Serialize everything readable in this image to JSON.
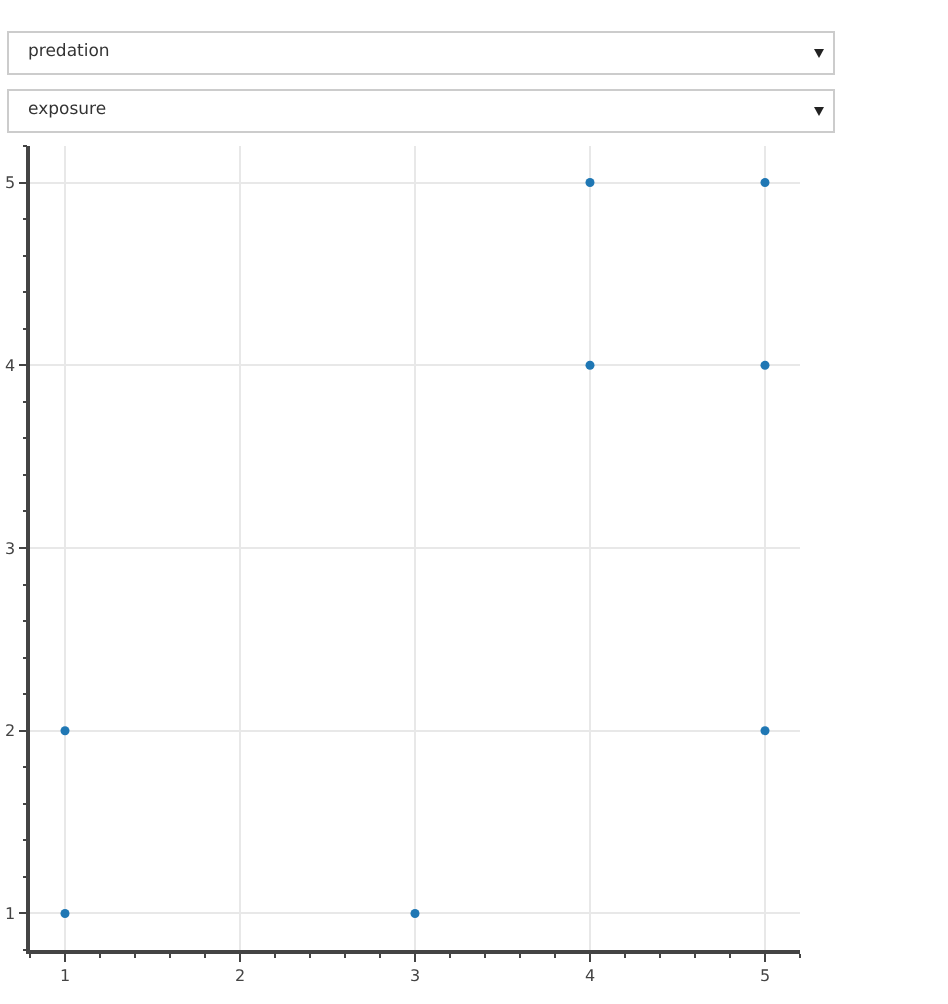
{
  "chart_data": {
    "type": "scatter",
    "annotations": [
      "predation",
      "exposure"
    ],
    "x": [
      1,
      1,
      3,
      4,
      4,
      5,
      5,
      5
    ],
    "values": [
      1,
      2,
      1,
      4,
      5,
      5,
      4,
      2
    ],
    "color": "#1f77b4",
    "marker": "circle",
    "xlim": [
      0.8,
      5.2
    ],
    "ylim": [
      0.8,
      5.2
    ],
    "xticks": [
      {
        "value": 0.8,
        "label": null
      },
      1,
      {
        "value": 1.2,
        "label": null
      },
      {
        "value": 1.4,
        "label": null
      },
      {
        "value": 1.6,
        "label": null
      },
      {
        "value": 1.8,
        "label": null
      },
      2,
      {
        "value": 2.2,
        "label": null
      },
      {
        "value": 2.4,
        "label": null
      },
      {
        "value": 2.6,
        "label": null
      },
      {
        "value": 2.8,
        "label": null
      },
      3,
      {
        "value": 3.2,
        "label": null
      },
      {
        "value": 3.4,
        "label": null
      },
      {
        "value": 3.6,
        "label": null
      },
      {
        "value": 3.8,
        "label": null
      },
      4,
      {
        "value": 4.2,
        "label": null
      },
      {
        "value": 4.4,
        "label": null
      },
      {
        "value": 4.6,
        "label": null
      },
      {
        "value": 4.8,
        "label": null
      },
      5,
      {
        "value": 5.2,
        "label": null
      }
    ],
    "yticks": [
      {
        "value": 0.8,
        "label": null
      },
      1,
      {
        "value": 1.2,
        "label": null
      },
      {
        "value": 1.4,
        "label": null
      },
      {
        "value": 1.6,
        "label": null
      },
      {
        "value": 1.8,
        "label": null
      },
      2,
      {
        "value": 2.2,
        "label": null
      },
      {
        "value": 2.4,
        "label": null
      },
      {
        "value": 2.6,
        "label": null
      },
      {
        "value": 2.8,
        "label": null
      },
      3,
      {
        "value": 3.2,
        "label": null
      },
      {
        "value": 3.4,
        "label": null
      },
      {
        "value": 3.6,
        "label": null
      },
      {
        "value": 3.8,
        "label": null
      },
      4,
      {
        "value": 4.2,
        "label": null
      },
      {
        "value": 4.4,
        "label": null
      },
      {
        "value": 4.6,
        "label": null
      },
      {
        "value": 4.8,
        "label": null
      },
      5,
      {
        "value": 5.2,
        "label": null
      }
    ],
    "grid": true
  }
}
